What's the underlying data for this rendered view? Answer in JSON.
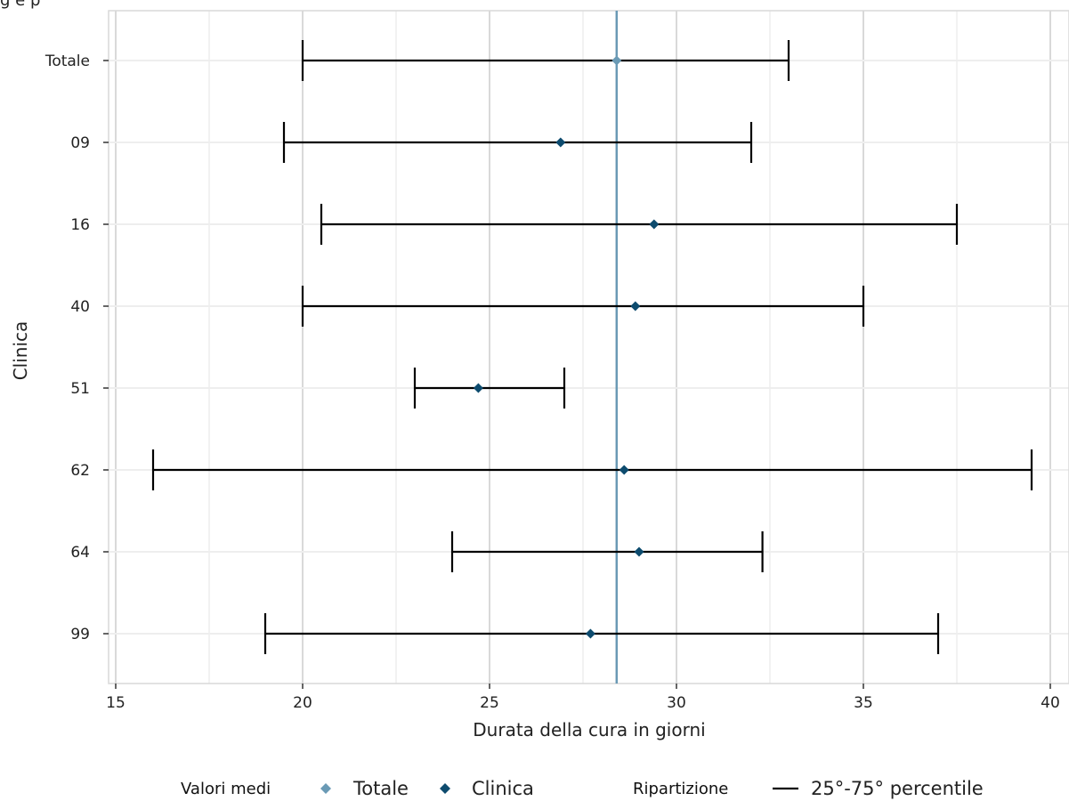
{
  "chart_data": {
    "type": "errorbar",
    "partial_top_text": "g  e  p",
    "xlabel": "Durata della cura in giorni",
    "ylabel": "Clinica",
    "xlim": [
      15,
      40
    ],
    "x_ticks": [
      "15",
      "20",
      "25",
      "30",
      "35",
      "40"
    ],
    "grid": true,
    "total_mean": 28.4,
    "rows": [
      {
        "label": "Totale",
        "p25": 20.0,
        "p75": 33.0,
        "mean": 28.4,
        "kind": "total"
      },
      {
        "label": "09",
        "p25": 19.5,
        "p75": 32.0,
        "mean": 26.9,
        "kind": "clinic"
      },
      {
        "label": "16",
        "p25": 20.5,
        "p75": 37.5,
        "mean": 29.4,
        "kind": "clinic"
      },
      {
        "label": "40",
        "p25": 20.0,
        "p75": 35.0,
        "mean": 28.9,
        "kind": "clinic"
      },
      {
        "label": "51",
        "p25": 23.0,
        "p75": 27.0,
        "mean": 24.7,
        "kind": "clinic"
      },
      {
        "label": "62",
        "p25": 16.0,
        "p75": 39.5,
        "mean": 28.6,
        "kind": "clinic"
      },
      {
        "label": "64",
        "p25": 24.0,
        "p75": 32.3,
        "mean": 29.0,
        "kind": "clinic"
      },
      {
        "label": "99",
        "p25": 19.0,
        "p75": 37.0,
        "mean": 27.7,
        "kind": "clinic"
      }
    ],
    "colors": {
      "total": "#6a9ab5",
      "clinic": "#0d4b6e",
      "mean_line": "#6a9ab5",
      "error_bar": "#000000",
      "grid_major": "#d9d9d9",
      "grid_minor": "#eeeeee"
    },
    "legend": {
      "position": "bottom",
      "means_title": "Valori medi",
      "total_label": "Totale",
      "clinic_label": "Clinica",
      "range_title": "Ripartizione",
      "range_label": "25°-75° percentile"
    }
  }
}
